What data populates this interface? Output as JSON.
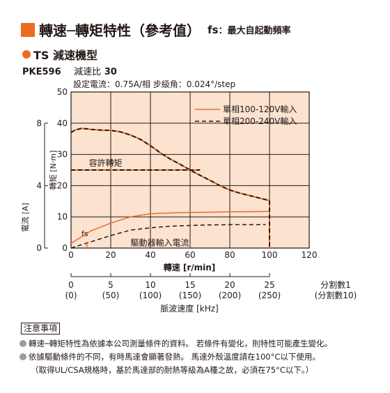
{
  "header": {
    "title": "轉速─轉矩特性（參考值）",
    "fs_label": "fs",
    "fs_desc": "：最大自起動頻率"
  },
  "subheader": {
    "series_label": "TS 減速機型",
    "model": "PKE596",
    "ratio_label": "減速比",
    "ratio_value": "30",
    "conditions": "設定電流：0.75A/相   步級角：0.024°/step"
  },
  "chart_data": {
    "type": "line",
    "title": "",
    "xlabel": "轉速 [r/min]",
    "ylabel": "轉矩 [N·m]",
    "y2label": "電流 [A]",
    "xlim": [
      0,
      120
    ],
    "ylim": [
      0,
      50
    ],
    "y2lim": [
      0,
      10
    ],
    "x_ticks": [
      "0",
      "20",
      "40",
      "60",
      "80",
      "100",
      "120"
    ],
    "y_ticks": [
      "0",
      "10",
      "20",
      "30",
      "40",
      "50"
    ],
    "y2_ticks": [
      "0",
      "4",
      "8"
    ],
    "grid": true,
    "legend_position": "top-right",
    "color_orange": "#ec6c1f",
    "color_black": "#231815",
    "series": [
      {
        "name": "單相100-120V輸入",
        "kind": "torque",
        "style": "solid",
        "color": "#ec6c1f",
        "x": [
          0,
          2,
          5,
          8,
          10,
          15,
          20,
          25,
          30,
          35,
          40,
          45,
          50,
          55,
          60,
          65,
          70,
          75,
          80,
          85,
          90,
          95,
          100
        ],
        "y": [
          37,
          37.8,
          38.3,
          38.2,
          38,
          37.8,
          37.7,
          37.2,
          36.2,
          34.8,
          32.8,
          30.5,
          28.5,
          26.8,
          25,
          23.3,
          21.7,
          20,
          18.6,
          17.6,
          16.8,
          16,
          15.2
        ]
      },
      {
        "name": "單相200-240V輸入",
        "kind": "torque",
        "style": "dashed",
        "color": "#231815",
        "x": [
          0,
          2,
          5,
          8,
          10,
          15,
          20,
          25,
          30,
          35,
          40,
          45,
          50,
          55,
          60,
          65,
          70,
          75,
          80,
          85,
          90,
          95,
          100
        ],
        "y": [
          37,
          37.8,
          38.3,
          38.2,
          38,
          37.8,
          37.7,
          37.2,
          36.2,
          34.8,
          32.8,
          30.5,
          28.5,
          26.8,
          25,
          23.3,
          21.7,
          20,
          18.6,
          17.6,
          16.8,
          16,
          15.2
        ]
      },
      {
        "name": "",
        "kind": "current",
        "style": "solid",
        "color": "#ec6c1f",
        "x": [
          0,
          10,
          20,
          30,
          40,
          50,
          60,
          70,
          80,
          90,
          100
        ],
        "y": [
          0.3,
          1.1,
          1.6,
          2,
          2.2,
          2.25,
          2.28,
          2.3,
          2.32,
          2.33,
          2.35
        ]
      },
      {
        "name": "",
        "kind": "current",
        "style": "dashed",
        "color": "#231815",
        "x": [
          0,
          10,
          20,
          30,
          40,
          50,
          60,
          70,
          80,
          90,
          98
        ],
        "y": [
          0,
          0.4,
          0.8,
          1.15,
          1.3,
          1.4,
          1.45,
          1.48,
          1.5,
          1.5,
          1.5
        ]
      }
    ],
    "permissible_torque": {
      "label": "容許轉矩",
      "value": 25,
      "x_end": 65
    },
    "fs": {
      "label": "fs",
      "x": 8
    },
    "current_label": "驅動器輸入電流",
    "pulse_axis": {
      "ticks_khz": [
        "0",
        "5",
        "10",
        "15",
        "20",
        "25"
      ],
      "ticks_div10": [
        "(0)",
        "(50)",
        "(100)",
        "(150)",
        "(200)",
        "(250)"
      ],
      "div1_label": "分割數1",
      "div10_label": "(分割數10)",
      "label": "脈波速度 [kHz]"
    }
  },
  "notes": {
    "title": "注意事項",
    "items": [
      "轉速─轉矩特性為依據本公司測量條件的資料。 若條件有變化，則特性可能產生變化。",
      "依據驅動條件的不同，有時馬達會顯著發熱。 馬達外殼溫度請在100°C以下使用。"
    ],
    "sub_item": "（取得UL/CSA規格時，基於馬達部的耐熱等級為A種之故，必須在75°C以下。）"
  }
}
